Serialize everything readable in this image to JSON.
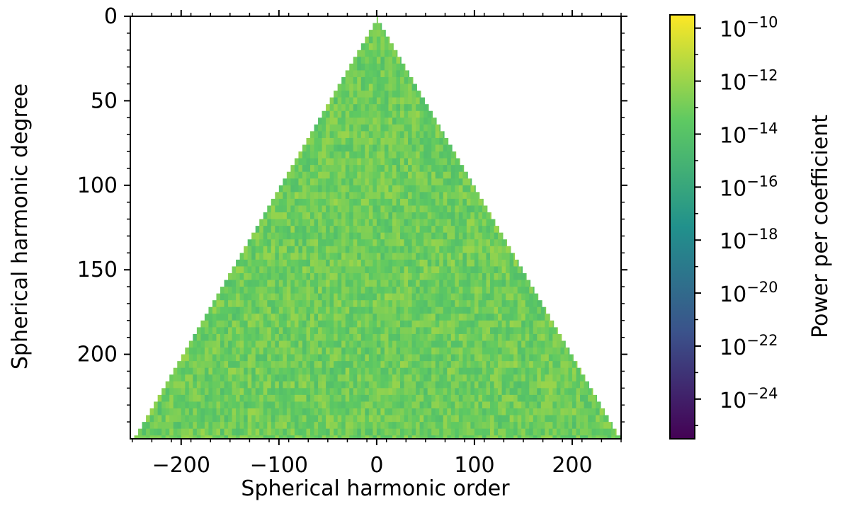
{
  "chart_data": {
    "type": "heatmap",
    "title": "",
    "xlabel": "Spherical harmonic order",
    "ylabel": "Spherical harmonic degree",
    "xlim": [
      -252,
      250
    ],
    "ylim": [
      250,
      0
    ],
    "x_ticks": [
      -200,
      -100,
      0,
      100,
      200
    ],
    "x_tick_labels": [
      "−200",
      "−100",
      "0",
      "100",
      "200"
    ],
    "y_ticks": [
      0,
      50,
      100,
      150,
      200
    ],
    "y_tick_labels": [
      "0",
      "50",
      "100",
      "150",
      "200"
    ],
    "region": "triangular: |order| <= degree, degree 0 to 250",
    "grid": false,
    "colorbar": {
      "label": "Power per coefficient",
      "scale": "log",
      "colormap": "viridis",
      "range_exponent": [
        -25.5,
        -9.5
      ],
      "tick_exponents": [
        -10,
        -12,
        -14,
        -16,
        -18,
        -20,
        -22,
        -24
      ],
      "tick_labels": [
        "10−10",
        "10−12",
        "10−14",
        "10−16",
        "10−18",
        "10−20",
        "10−22",
        "10−24"
      ]
    },
    "typical_value_exponent": -13,
    "colors": [
      "#440154",
      "#3b528b",
      "#21918c",
      "#5ec962",
      "#fde725"
    ]
  }
}
